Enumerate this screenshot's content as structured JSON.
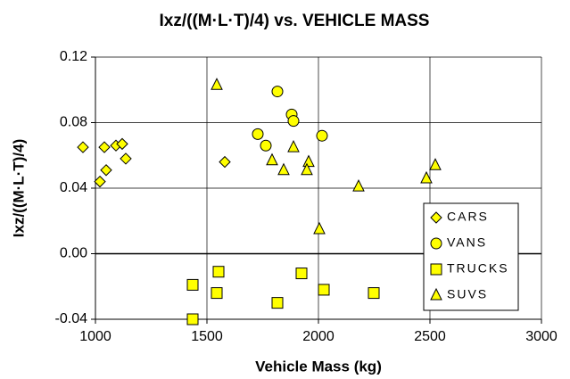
{
  "chart_data": {
    "type": "scatter",
    "title": "Ixz/((M·L·T)/4) vs. VEHICLE MASS",
    "x_label": "Vehicle Mass  (kg)",
    "y_label": "Ixz/((M·L·T)/4)",
    "xlim": [
      1000,
      3000
    ],
    "xticks": [
      1000,
      1500,
      2000,
      2500,
      3000
    ],
    "ylim": [
      -0.04,
      0.12
    ],
    "yticks": [
      -0.04,
      {
        "value": 0,
        "label": "0.00"
      },
      0.04,
      0.08,
      0.12
    ],
    "grid": true,
    "legend": "lower right",
    "series": [
      {
        "name": "CARS",
        "marker": "diamond",
        "color": "#ffff00",
        "x": [
          944,
          1020,
          1040,
          1048,
          1092,
          1120,
          1136,
          1580
        ],
        "values": [
          0.065,
          0.044,
          0.065,
          0.051,
          0.066,
          0.067,
          0.058,
          0.056
        ]
      },
      {
        "name": "VANS",
        "marker": "circle",
        "color": "#ffff00",
        "x": [
          1728,
          1764,
          1816,
          1880,
          1888,
          2016
        ],
        "values": [
          0.073,
          0.066,
          0.099,
          0.085,
          0.081,
          0.072
        ]
      },
      {
        "name": "TRUCKS",
        "marker": "square",
        "color": "#ffff00",
        "x": [
          1436,
          1436,
          1552,
          1544,
          1816,
          1924,
          2024,
          2248
        ],
        "values": [
          -0.019,
          -0.04,
          -0.011,
          -0.024,
          -0.03,
          -0.012,
          -0.022,
          -0.024
        ]
      },
      {
        "name": "SUVS",
        "marker": "triangle",
        "color": "#ffff00",
        "x": [
          1544,
          1792,
          1844,
          1888,
          1956,
          1948,
          2180,
          2004,
          2484,
          2524
        ],
        "values": [
          0.103,
          0.057,
          0.051,
          0.065,
          0.056,
          0.051,
          0.041,
          0.015,
          0.046,
          0.054
        ]
      }
    ]
  }
}
